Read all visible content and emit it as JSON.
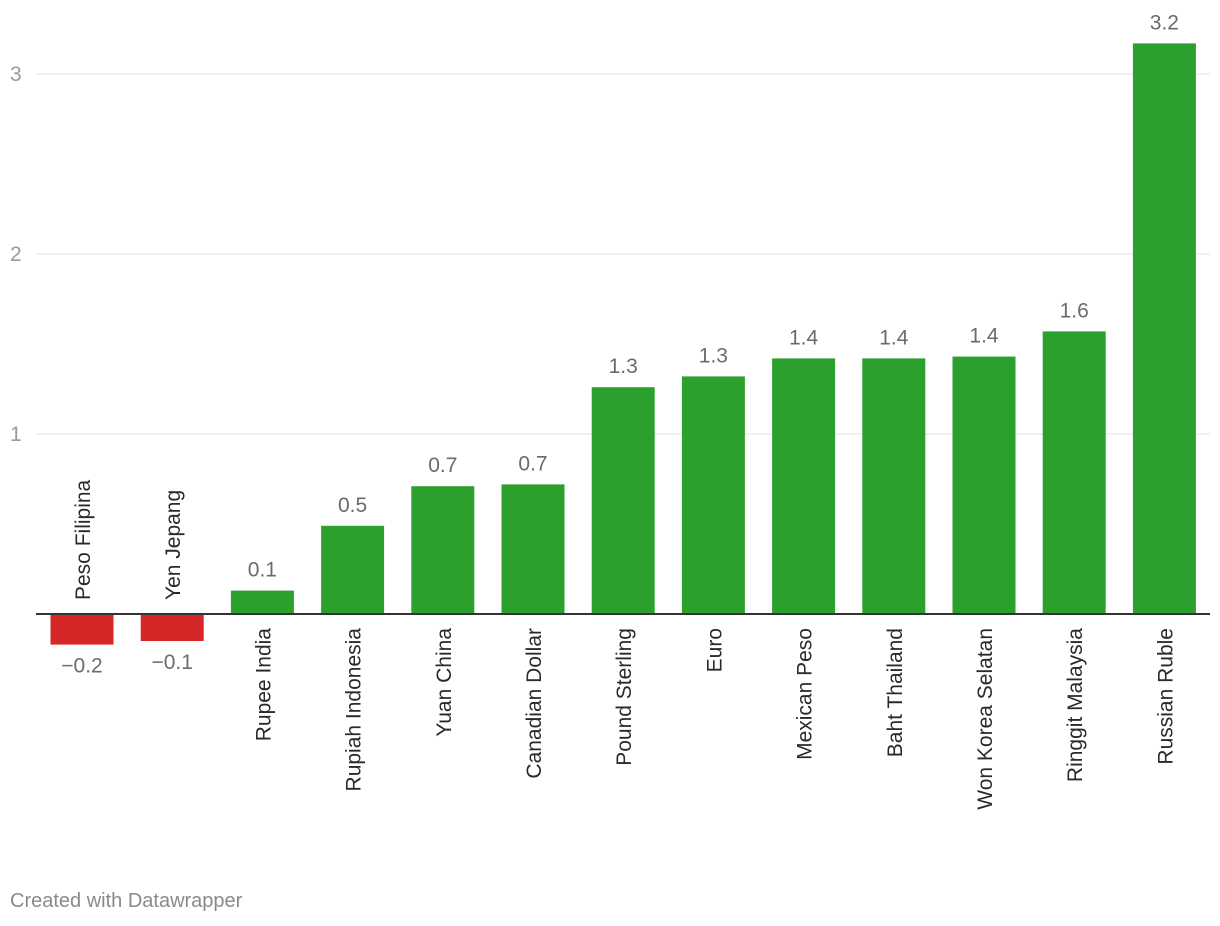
{
  "chart_data": {
    "type": "bar",
    "categories": [
      "Peso Filipina",
      "Yen Jepang",
      "Rupee India",
      "Rupiah Indonesia",
      "Yuan China",
      "Canadian Dollar",
      "Pound Sterling",
      "Euro",
      "Mexican Peso",
      "Baht Thailand",
      "Won Korea Selatan",
      "Ringgit Malaysia",
      "Russian Ruble"
    ],
    "values": [
      -0.17,
      -0.15,
      0.13,
      0.49,
      0.71,
      0.72,
      1.26,
      1.32,
      1.42,
      1.42,
      1.43,
      1.57,
      3.17
    ],
    "value_labels": [
      "−0.2",
      "−0.1",
      "0.1",
      "0.5",
      "0.7",
      "0.7",
      "1.3",
      "1.3",
      "1.4",
      "1.4",
      "1.4",
      "1.6",
      "3.2"
    ],
    "yticks": [
      "1",
      "2",
      "3"
    ],
    "ylim": [
      -0.2,
      3.3
    ],
    "grid": true,
    "colors": {
      "positive": "#2ca02c",
      "negative": "#d62728",
      "grid": "#e0e0e0",
      "baseline": "#333333"
    },
    "title": "",
    "xlabel": "",
    "ylabel": ""
  },
  "footer": {
    "credit": "Created with Datawrapper"
  }
}
